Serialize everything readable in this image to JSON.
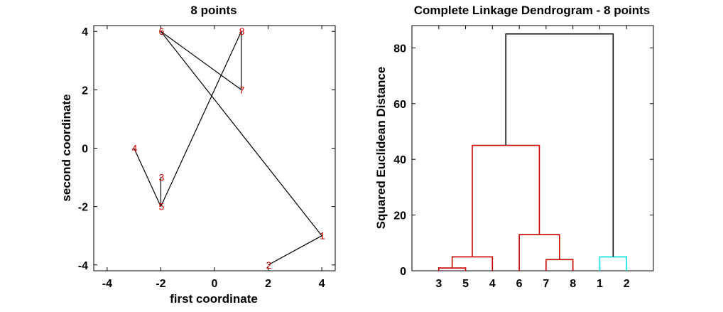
{
  "chart_data": [
    {
      "type": "scatter",
      "title": "8 points",
      "xlabel": "first coordinate",
      "ylabel": "second coordinate",
      "xlim": [
        -4.5,
        4.5
      ],
      "ylim": [
        -4.2,
        4.2
      ],
      "xticks": [
        -4,
        -2,
        0,
        2,
        4
      ],
      "yticks": [
        -4,
        -2,
        0,
        2,
        4
      ],
      "grid": false,
      "point_color": "#cc0000",
      "line_color": "#000000",
      "points": [
        {
          "label": "1",
          "x": 4,
          "y": -3
        },
        {
          "label": "2",
          "x": 2,
          "y": -4
        },
        {
          "label": "3",
          "x": -2,
          "y": -1
        },
        {
          "label": "4",
          "x": -3,
          "y": 0
        },
        {
          "label": "5",
          "x": -2,
          "y": -2
        },
        {
          "label": "6",
          "x": -2,
          "y": 4
        },
        {
          "label": "7",
          "x": 1,
          "y": 2
        },
        {
          "label": "8",
          "x": 1,
          "y": 4
        }
      ],
      "segments": [
        [
          "2",
          "1"
        ],
        [
          "1",
          "6"
        ],
        [
          "6",
          "7"
        ],
        [
          "7",
          "8"
        ],
        [
          "8",
          "5"
        ],
        [
          "5",
          "3"
        ],
        [
          "5",
          "4"
        ]
      ]
    },
    {
      "type": "dendrogram",
      "title": "Complete Linkage Dendrogram - 8 points",
      "xlabel": "",
      "ylabel": "Squared Euclidean Distance",
      "ylim": [
        0,
        88
      ],
      "yticks": [
        0,
        20,
        40,
        60,
        80
      ],
      "grid": false,
      "leaf_order": [
        "3",
        "5",
        "4",
        "6",
        "7",
        "8",
        "1",
        "2"
      ],
      "colors": {
        "red": "#cc0000",
        "cyan": "#00e5ee",
        "black": "#000000"
      },
      "merges": [
        {
          "a": "3",
          "b": "5",
          "height": 1,
          "color": "red",
          "id": "c35"
        },
        {
          "a": "c35",
          "b": "4",
          "height": 5,
          "color": "red",
          "id": "c354"
        },
        {
          "a": "7",
          "b": "8",
          "height": 4,
          "color": "red",
          "id": "c78"
        },
        {
          "a": "6",
          "b": "c78",
          "height": 13,
          "color": "red",
          "id": "c678"
        },
        {
          "a": "c354",
          "b": "c678",
          "height": 45,
          "color": "red",
          "id": "cA"
        },
        {
          "a": "1",
          "b": "2",
          "height": 5,
          "color": "cyan",
          "id": "c12"
        },
        {
          "a": "cA",
          "b": "c12",
          "height": 85,
          "color": "black",
          "id": "root"
        }
      ]
    }
  ]
}
